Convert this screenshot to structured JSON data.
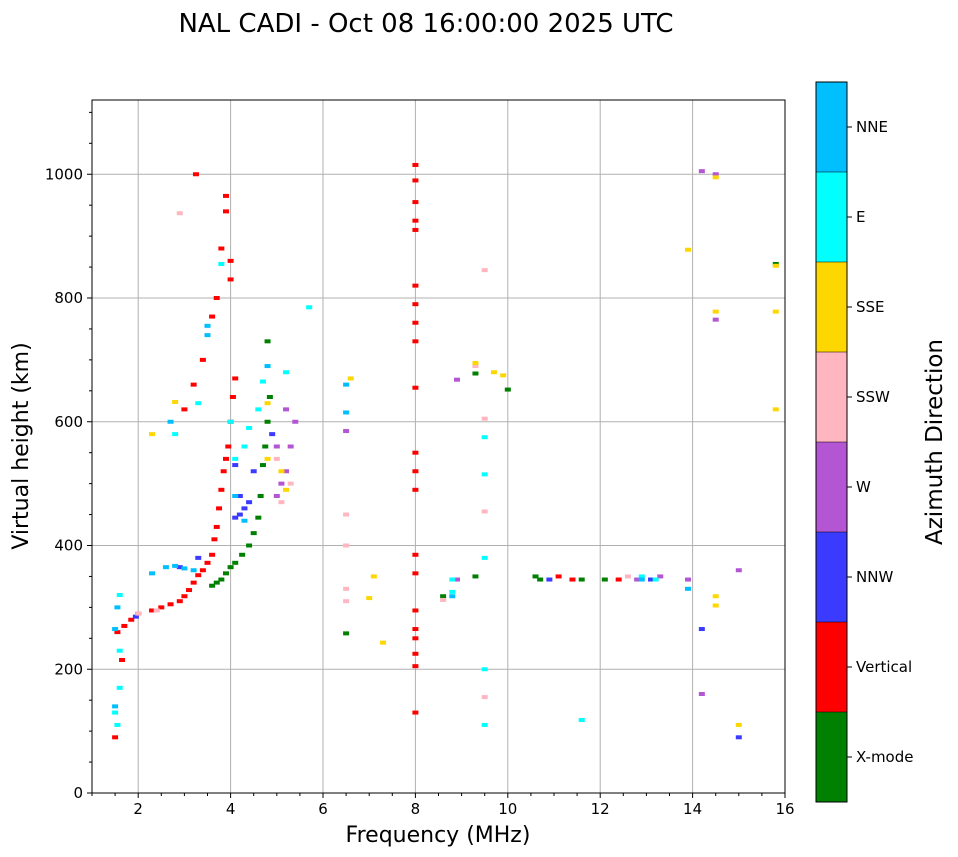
{
  "chart_data": {
    "type": "scatter",
    "title": "NAL CADI - Oct 08 16:00:00 2025 UTC",
    "xlabel": "Frequency (MHz)",
    "ylabel": "Virtual height (km)",
    "xlim": [
      1,
      16
    ],
    "ylim": [
      0,
      1120
    ],
    "xticks": [
      2,
      4,
      6,
      8,
      10,
      12,
      14,
      16
    ],
    "yticks": [
      0,
      200,
      400,
      600,
      800,
      1000
    ],
    "grid": true,
    "colorbar": {
      "label": "Azimuth Direction",
      "categories": [
        {
          "name": "X-mode",
          "color": "#008000"
        },
        {
          "name": "Vertical",
          "color": "#ff0000"
        },
        {
          "name": "NNW",
          "color": "#3b3bff"
        },
        {
          "name": "W",
          "color": "#b455d3"
        },
        {
          "name": "SSW",
          "color": "#ffb6c1"
        },
        {
          "name": "SSE",
          "color": "#ffd700"
        },
        {
          "name": "E",
          "color": "#00ffff"
        },
        {
          "name": "NNE",
          "color": "#00bfff"
        }
      ]
    },
    "series": [
      {
        "name": "X-mode",
        "points": [
          [
            3.6,
            335
          ],
          [
            3.7,
            340
          ],
          [
            3.8,
            345
          ],
          [
            3.9,
            355
          ],
          [
            4.0,
            365
          ],
          [
            4.1,
            372
          ],
          [
            4.25,
            385
          ],
          [
            4.4,
            400
          ],
          [
            4.5,
            420
          ],
          [
            4.6,
            445
          ],
          [
            4.65,
            480
          ],
          [
            4.7,
            530
          ],
          [
            4.75,
            560
          ],
          [
            4.8,
            600
          ],
          [
            4.85,
            640
          ],
          [
            4.8,
            730
          ],
          [
            6.5,
            258
          ],
          [
            9.3,
            350
          ],
          [
            9.3,
            678
          ],
          [
            10.0,
            652
          ],
          [
            10.6,
            350
          ],
          [
            10.7,
            345
          ],
          [
            11.6,
            345
          ],
          [
            12.1,
            345
          ],
          [
            15.8,
            855
          ],
          [
            8.6,
            318
          ]
        ]
      },
      {
        "name": "Vertical",
        "points": [
          [
            1.5,
            90
          ],
          [
            1.55,
            260
          ],
          [
            1.7,
            270
          ],
          [
            1.85,
            280
          ],
          [
            2.0,
            290
          ],
          [
            2.3,
            295
          ],
          [
            2.5,
            300
          ],
          [
            2.7,
            305
          ],
          [
            2.9,
            310
          ],
          [
            3.0,
            318
          ],
          [
            3.1,
            328
          ],
          [
            3.2,
            340
          ],
          [
            3.3,
            352
          ],
          [
            3.4,
            360
          ],
          [
            3.5,
            372
          ],
          [
            3.6,
            385
          ],
          [
            3.65,
            410
          ],
          [
            3.7,
            430
          ],
          [
            3.75,
            460
          ],
          [
            3.8,
            490
          ],
          [
            3.85,
            520
          ],
          [
            3.9,
            540
          ],
          [
            3.95,
            560
          ],
          [
            4.0,
            600
          ],
          [
            4.05,
            640
          ],
          [
            4.1,
            670
          ],
          [
            3.0,
            620
          ],
          [
            3.2,
            660
          ],
          [
            3.4,
            700
          ],
          [
            3.6,
            770
          ],
          [
            3.7,
            800
          ],
          [
            3.8,
            880
          ],
          [
            3.9,
            940
          ],
          [
            3.9,
            965
          ],
          [
            4.0,
            860
          ],
          [
            4.0,
            830
          ],
          [
            3.25,
            1000
          ],
          [
            1.65,
            215
          ],
          [
            8.0,
            130
          ],
          [
            8.0,
            205
          ],
          [
            8.0,
            225
          ],
          [
            8.0,
            250
          ],
          [
            8.0,
            265
          ],
          [
            8.0,
            295
          ],
          [
            8.0,
            355
          ],
          [
            8.0,
            385
          ],
          [
            8.0,
            490
          ],
          [
            8.0,
            520
          ],
          [
            8.0,
            550
          ],
          [
            8.0,
            655
          ],
          [
            8.0,
            730
          ],
          [
            8.0,
            760
          ],
          [
            8.0,
            790
          ],
          [
            8.0,
            820
          ],
          [
            8.0,
            910
          ],
          [
            8.0,
            925
          ],
          [
            8.0,
            955
          ],
          [
            8.0,
            990
          ],
          [
            8.0,
            1015
          ],
          [
            11.1,
            350
          ],
          [
            11.4,
            345
          ],
          [
            12.4,
            345
          ]
        ]
      },
      {
        "name": "NNW",
        "points": [
          [
            4.1,
            445
          ],
          [
            4.2,
            450
          ],
          [
            4.3,
            460
          ],
          [
            4.2,
            480
          ],
          [
            4.1,
            530
          ],
          [
            4.4,
            470
          ],
          [
            4.5,
            520
          ],
          [
            4.9,
            580
          ],
          [
            2.9,
            365
          ],
          [
            3.3,
            380
          ],
          [
            1.95,
            285
          ],
          [
            10.9,
            345
          ],
          [
            13.1,
            345
          ],
          [
            15.0,
            90
          ],
          [
            14.2,
            265
          ]
        ]
      },
      {
        "name": "W",
        "points": [
          [
            5.0,
            480
          ],
          [
            5.1,
            500
          ],
          [
            5.2,
            520
          ],
          [
            5.3,
            560
          ],
          [
            5.4,
            600
          ],
          [
            5.2,
            620
          ],
          [
            5.0,
            560
          ],
          [
            6.5,
            585
          ],
          [
            8.9,
            668
          ],
          [
            8.9,
            345
          ],
          [
            12.8,
            345
          ],
          [
            13.3,
            350
          ],
          [
            13.9,
            345
          ],
          [
            14.2,
            160
          ],
          [
            14.2,
            1005
          ],
          [
            14.5,
            1000
          ],
          [
            14.5,
            765
          ],
          [
            15.0,
            360
          ]
        ]
      },
      {
        "name": "SSW",
        "points": [
          [
            2.0,
            290
          ],
          [
            2.4,
            295
          ],
          [
            2.9,
            937
          ],
          [
            5.0,
            540
          ],
          [
            5.1,
            470
          ],
          [
            5.3,
            500
          ],
          [
            6.5,
            310
          ],
          [
            6.5,
            330
          ],
          [
            6.5,
            400
          ],
          [
            6.5,
            450
          ],
          [
            8.6,
            312
          ],
          [
            9.5,
            155
          ],
          [
            9.5,
            455
          ],
          [
            9.5,
            605
          ],
          [
            9.5,
            845
          ],
          [
            9.3,
            690
          ],
          [
            12.6,
            350
          ]
        ]
      },
      {
        "name": "SSE",
        "points": [
          [
            2.3,
            580
          ],
          [
            2.8,
            632
          ],
          [
            4.8,
            540
          ],
          [
            4.8,
            630
          ],
          [
            5.1,
            520
          ],
          [
            5.2,
            490
          ],
          [
            6.6,
            670
          ],
          [
            7.0,
            315
          ],
          [
            7.1,
            350
          ],
          [
            7.3,
            243
          ],
          [
            9.3,
            695
          ],
          [
            9.7,
            680
          ],
          [
            9.9,
            675
          ],
          [
            13.9,
            878
          ],
          [
            14.5,
            995
          ],
          [
            14.5,
            778
          ],
          [
            14.5,
            318
          ],
          [
            14.5,
            303
          ],
          [
            15.0,
            110
          ],
          [
            15.8,
            620
          ],
          [
            15.8,
            778
          ],
          [
            15.8,
            852
          ]
        ]
      },
      {
        "name": "E",
        "points": [
          [
            1.5,
            130
          ],
          [
            1.55,
            110
          ],
          [
            1.6,
            170
          ],
          [
            1.6,
            230
          ],
          [
            1.6,
            320
          ],
          [
            2.8,
            580
          ],
          [
            3.3,
            630
          ],
          [
            4.0,
            600
          ],
          [
            4.1,
            540
          ],
          [
            4.3,
            560
          ],
          [
            4.4,
            590
          ],
          [
            4.6,
            620
          ],
          [
            4.7,
            665
          ],
          [
            5.2,
            680
          ],
          [
            5.7,
            785
          ],
          [
            3.8,
            855
          ],
          [
            8.8,
            345
          ],
          [
            8.8,
            325
          ],
          [
            9.5,
            110
          ],
          [
            9.5,
            200
          ],
          [
            9.5,
            380
          ],
          [
            9.5,
            515
          ],
          [
            9.5,
            575
          ],
          [
            12.9,
            350
          ],
          [
            13.2,
            345
          ],
          [
            11.6,
            118
          ]
        ]
      },
      {
        "name": "NNE",
        "points": [
          [
            1.5,
            140
          ],
          [
            1.5,
            265
          ],
          [
            1.55,
            300
          ],
          [
            2.3,
            355
          ],
          [
            2.6,
            365
          ],
          [
            2.8,
            367
          ],
          [
            3.0,
            363
          ],
          [
            3.2,
            360
          ],
          [
            3.5,
            755
          ],
          [
            3.5,
            740
          ],
          [
            2.7,
            600
          ],
          [
            4.1,
            480
          ],
          [
            4.3,
            440
          ],
          [
            4.8,
            690
          ],
          [
            6.5,
            660
          ],
          [
            6.5,
            615
          ],
          [
            12.9,
            345
          ],
          [
            13.9,
            330
          ],
          [
            8.8,
            318
          ]
        ]
      }
    ]
  }
}
